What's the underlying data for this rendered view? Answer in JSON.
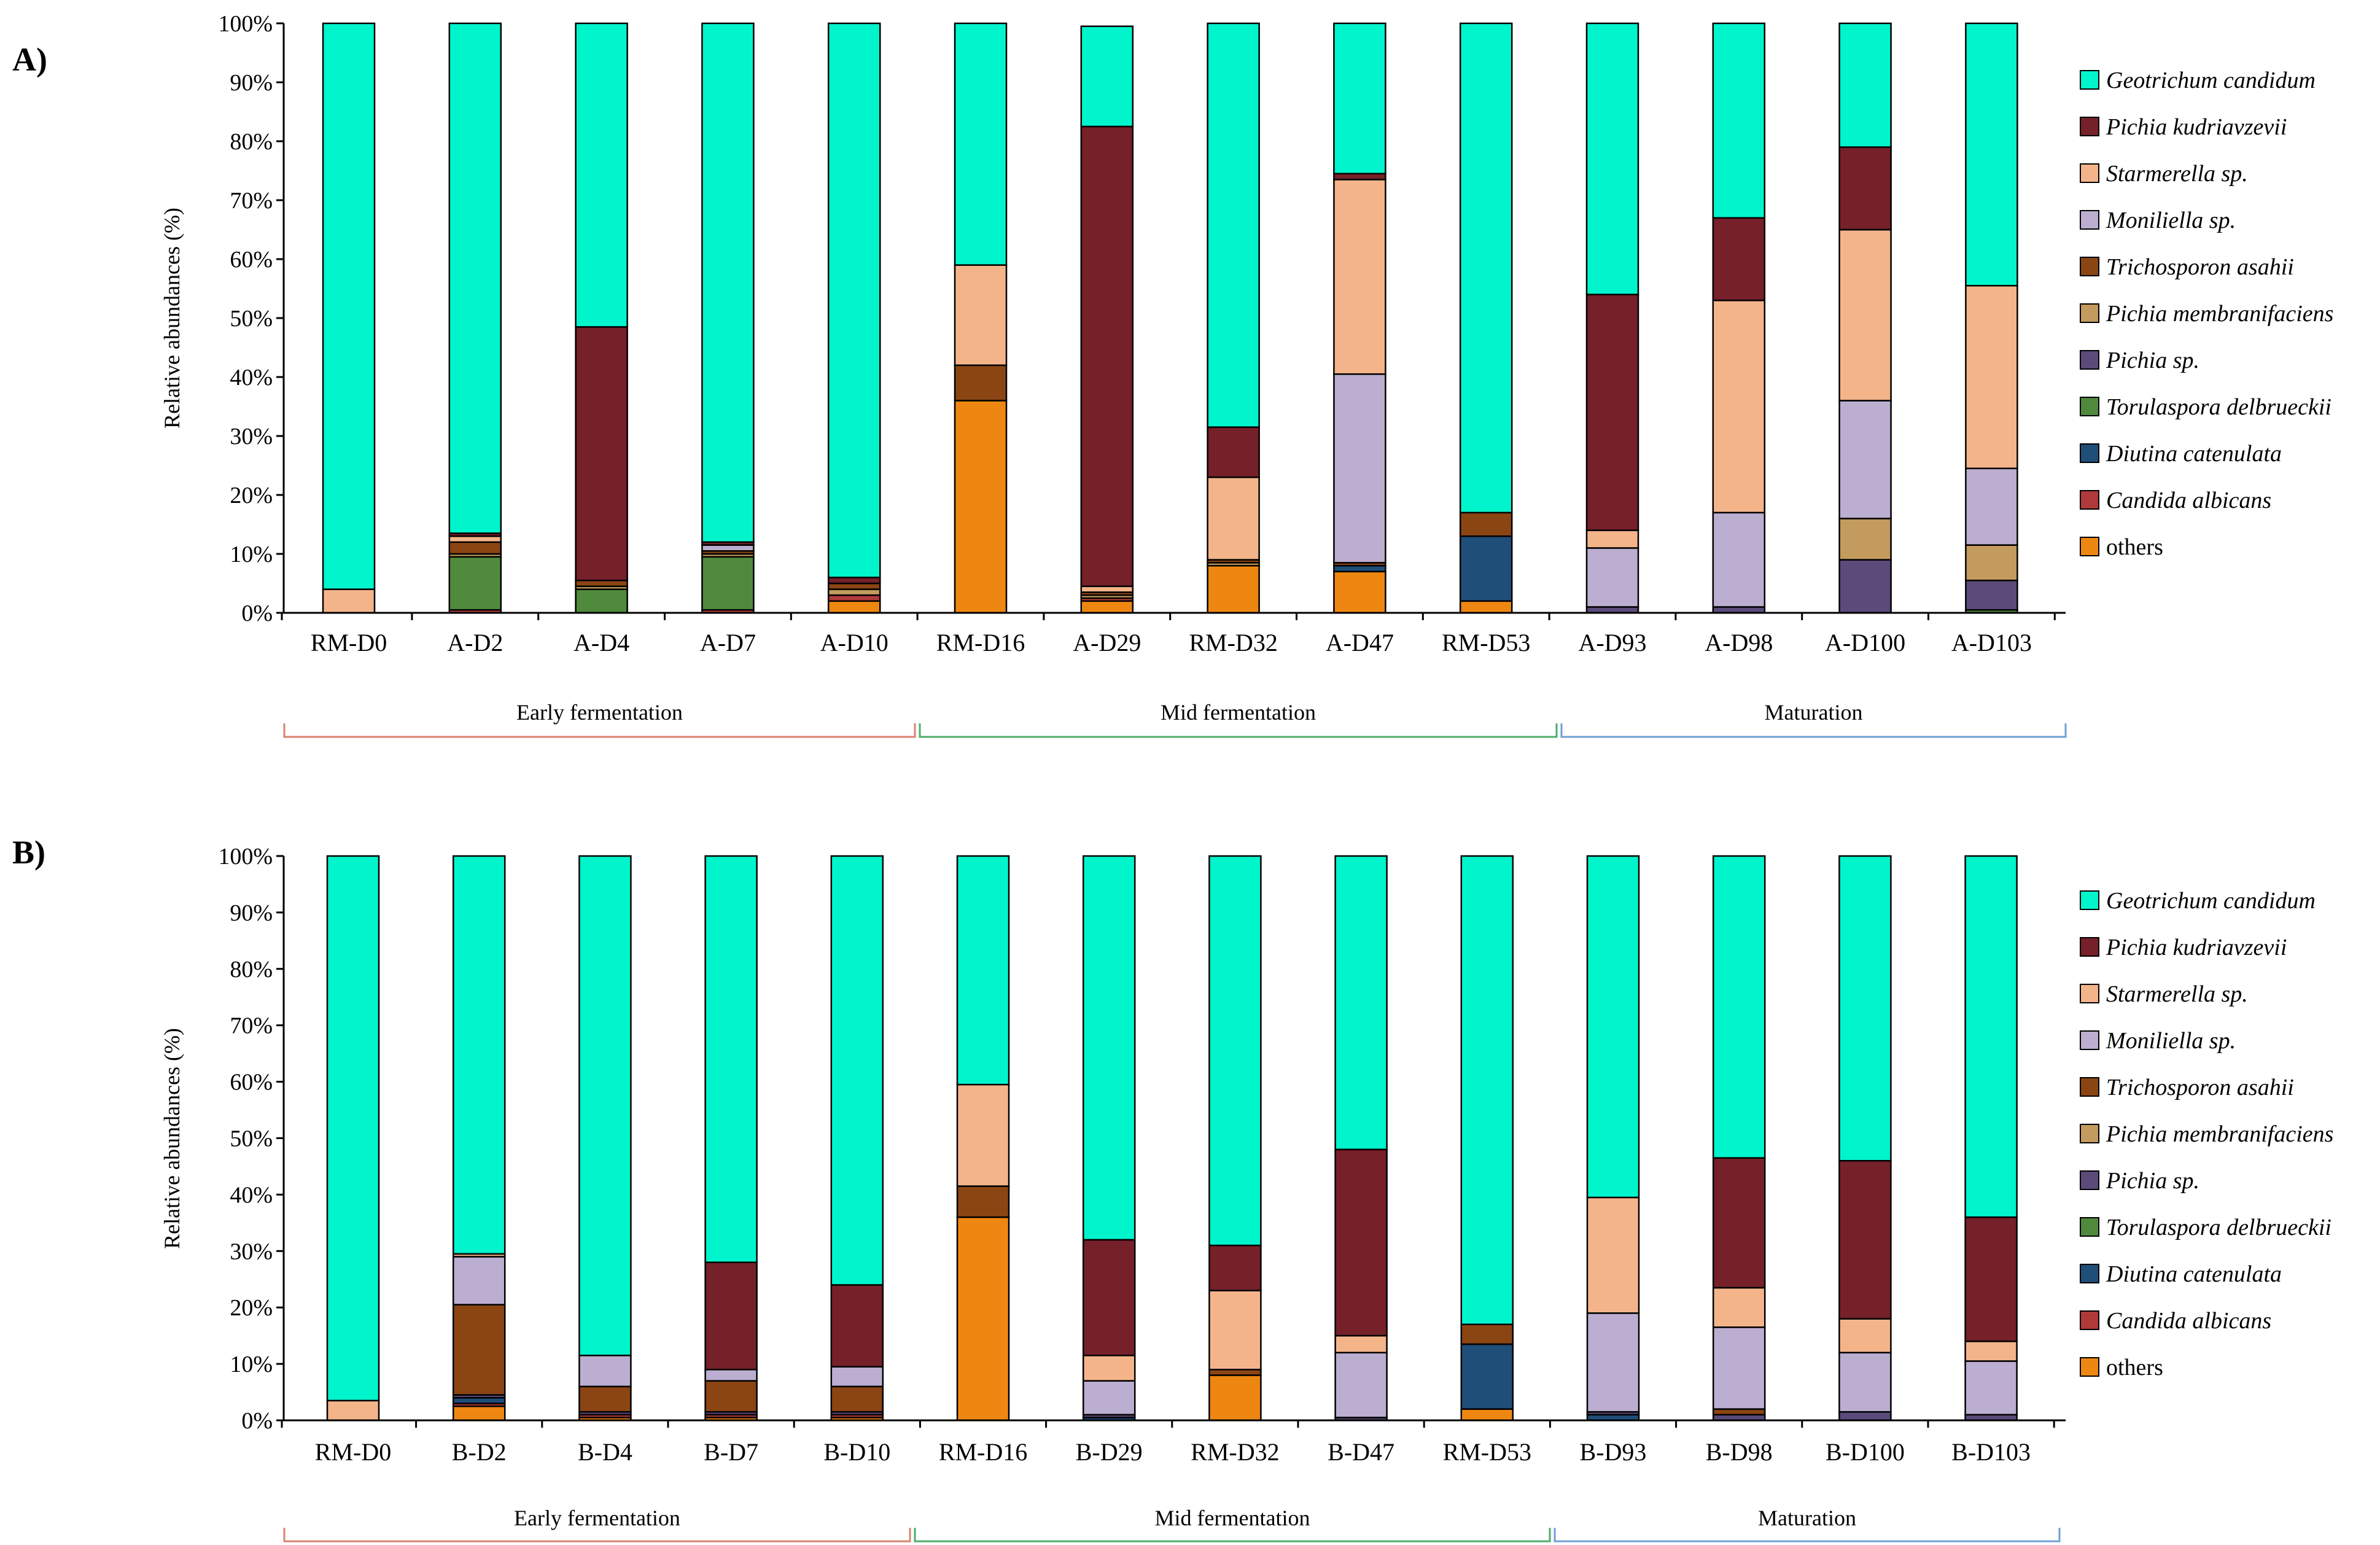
{
  "chart_data": [
    {
      "type": "bar",
      "stacked": true,
      "panel": "A)",
      "ylabel": "Relative abundances (%)",
      "ylim": [
        0,
        100
      ],
      "yticks": [
        "0%",
        "10%",
        "20%",
        "30%",
        "40%",
        "50%",
        "60%",
        "70%",
        "80%",
        "90%",
        "100%"
      ],
      "categories": [
        "RM-D0",
        "A-D2",
        "A-D4",
        "A-D7",
        "A-D10",
        "RM-D16",
        "A-D29",
        "RM-D32",
        "A-D47",
        "RM-D53",
        "A-D93",
        "A-D98",
        "A-D100",
        "A-D103"
      ],
      "phases": [
        {
          "label": "Early fermentation",
          "color": "#d9826f"
        },
        {
          "label": "Mid fermentation",
          "color": "#4caf6a"
        },
        {
          "label": "Maturation",
          "color": "#6fa0d6"
        }
      ],
      "series": [
        {
          "name": "others",
          "color": "#ee8711",
          "values": [
            0,
            0,
            0,
            0,
            2,
            36,
            2,
            8,
            7,
            2,
            0,
            0,
            0,
            0
          ]
        },
        {
          "name": "Candida albicans",
          "color": "#b03a3a",
          "values": [
            0,
            0.5,
            0,
            0.5,
            1,
            0,
            0.5,
            0,
            0,
            0,
            0,
            0,
            0,
            0
          ]
        },
        {
          "name": "Diutina catenulata",
          "color": "#1f4e79",
          "values": [
            0,
            0,
            0,
            0,
            0,
            0,
            0,
            0,
            1,
            11,
            0,
            0,
            0,
            0
          ]
        },
        {
          "name": "Torulaspora delbrueckii",
          "color": "#4f8a3c",
          "values": [
            0,
            9,
            4,
            9,
            0,
            0,
            0,
            0,
            0,
            0,
            0,
            0,
            0,
            0.5
          ]
        },
        {
          "name": "Pichia sp.",
          "color": "#5c4a7a",
          "values": [
            0,
            0,
            0,
            0,
            0,
            0,
            0,
            0,
            0,
            0,
            1,
            1,
            9,
            5
          ]
        },
        {
          "name": "Pichia membranifaciens",
          "color": "#c39b5e",
          "values": [
            0,
            0.5,
            0.5,
            0.5,
            1,
            0,
            0.5,
            0.5,
            0,
            0,
            0,
            0,
            7,
            6
          ]
        },
        {
          "name": "Trichosporon asahii",
          "color": "#8b4513",
          "values": [
            0,
            2,
            1,
            0.5,
            1,
            6,
            0.5,
            0.5,
            0.5,
            4,
            0,
            0,
            0,
            0
          ]
        },
        {
          "name": "Moniliella sp.",
          "color": "#bcaed0",
          "values": [
            0,
            0,
            0,
            1,
            0,
            0,
            0,
            0,
            32,
            0,
            10,
            16,
            20,
            13
          ]
        },
        {
          "name": "Starmerella sp.",
          "color": "#f4b48a",
          "values": [
            4,
            1,
            0,
            0,
            0,
            17,
            1,
            14,
            33,
            0,
            3,
            36,
            29,
            31
          ]
        },
        {
          "name": "Pichia kudriavzevii",
          "color": "#76202a",
          "values": [
            0,
            0.5,
            43,
            0.5,
            1,
            0,
            78,
            8.5,
            1,
            0,
            40,
            14,
            14,
            0
          ]
        },
        {
          "name": "Geotrichum candidum",
          "color": "#00f5cc",
          "values": [
            96,
            86.5,
            51.5,
            88,
            94,
            41,
            17,
            68.5,
            25.5,
            83,
            46,
            33,
            21,
            44.5
          ]
        }
      ]
    },
    {
      "type": "bar",
      "stacked": true,
      "panel": "B)",
      "ylabel": "Relative abundances (%)",
      "ylim": [
        0,
        100
      ],
      "yticks": [
        "0%",
        "10%",
        "20%",
        "30%",
        "40%",
        "50%",
        "60%",
        "70%",
        "80%",
        "90%",
        "100%"
      ],
      "categories": [
        "RM-D0",
        "B-D2",
        "B-D4",
        "B-D7",
        "B-D10",
        "RM-D16",
        "B-D29",
        "RM-D32",
        "B-D47",
        "RM-D53",
        "B-D93",
        "B-D98",
        "B-D100",
        "B-D103"
      ],
      "phases": [
        {
          "label": "Early fermentation",
          "color": "#d9826f"
        },
        {
          "label": "Mid fermentation",
          "color": "#4caf6a"
        },
        {
          "label": "Maturation",
          "color": "#6fa0d6"
        }
      ],
      "series": [
        {
          "name": "others",
          "color": "#ee8711",
          "values": [
            0,
            2.5,
            0.5,
            0.5,
            0.5,
            36,
            0,
            8,
            0,
            2,
            0,
            0,
            0,
            0
          ]
        },
        {
          "name": "Candida albicans",
          "color": "#b03a3a",
          "values": [
            0,
            0.5,
            0.5,
            0.5,
            0.5,
            0,
            0,
            0,
            0,
            0,
            0,
            0,
            0,
            0
          ]
        },
        {
          "name": "Diutina catenulata",
          "color": "#1f4e79",
          "values": [
            0,
            1,
            0,
            0,
            0,
            0,
            0.5,
            0,
            0,
            11.5,
            1,
            0,
            0,
            0
          ]
        },
        {
          "name": "Torulaspora delbrueckii",
          "color": "#4f8a3c",
          "values": [
            0,
            0,
            0,
            0,
            0,
            0,
            0,
            0,
            0,
            0,
            0,
            0,
            0,
            0
          ]
        },
        {
          "name": "Pichia sp.",
          "color": "#5c4a7a",
          "values": [
            0,
            0.5,
            0.5,
            0.5,
            0.5,
            0,
            0.5,
            0,
            0.5,
            0,
            0.5,
            1,
            1.5,
            1
          ]
        },
        {
          "name": "Pichia membranifaciens",
          "color": "#c39b5e",
          "values": [
            0,
            0,
            0,
            0,
            0,
            0,
            0,
            0,
            0,
            0,
            0,
            0,
            0,
            0
          ]
        },
        {
          "name": "Trichosporon asahii",
          "color": "#8b4513",
          "values": [
            0,
            16,
            4.5,
            5.5,
            4.5,
            5.5,
            0,
            1,
            0,
            3.5,
            0,
            1,
            0,
            0
          ]
        },
        {
          "name": "Moniliella sp.",
          "color": "#bcaed0",
          "values": [
            0,
            8.5,
            5.5,
            2,
            3.5,
            0,
            6,
            0,
            11.5,
            0,
            17.5,
            14.5,
            10.5,
            9.5
          ]
        },
        {
          "name": "Starmerella sp.",
          "color": "#f4b48a",
          "values": [
            3.5,
            0.5,
            0,
            0,
            0,
            18,
            4.5,
            14,
            3,
            0,
            20.5,
            7,
            6,
            3.5
          ]
        },
        {
          "name": "Pichia kudriavzevii",
          "color": "#76202a",
          "values": [
            0,
            0,
            0,
            19,
            14.5,
            0,
            20.5,
            8,
            33,
            0,
            0,
            23,
            28,
            22
          ]
        },
        {
          "name": "Geotrichum candidum",
          "color": "#00f5cc",
          "values": [
            96.5,
            70.5,
            88.5,
            72,
            76,
            40.5,
            68,
            69,
            52,
            83,
            60.5,
            53.5,
            54,
            64
          ]
        }
      ]
    }
  ]
}
